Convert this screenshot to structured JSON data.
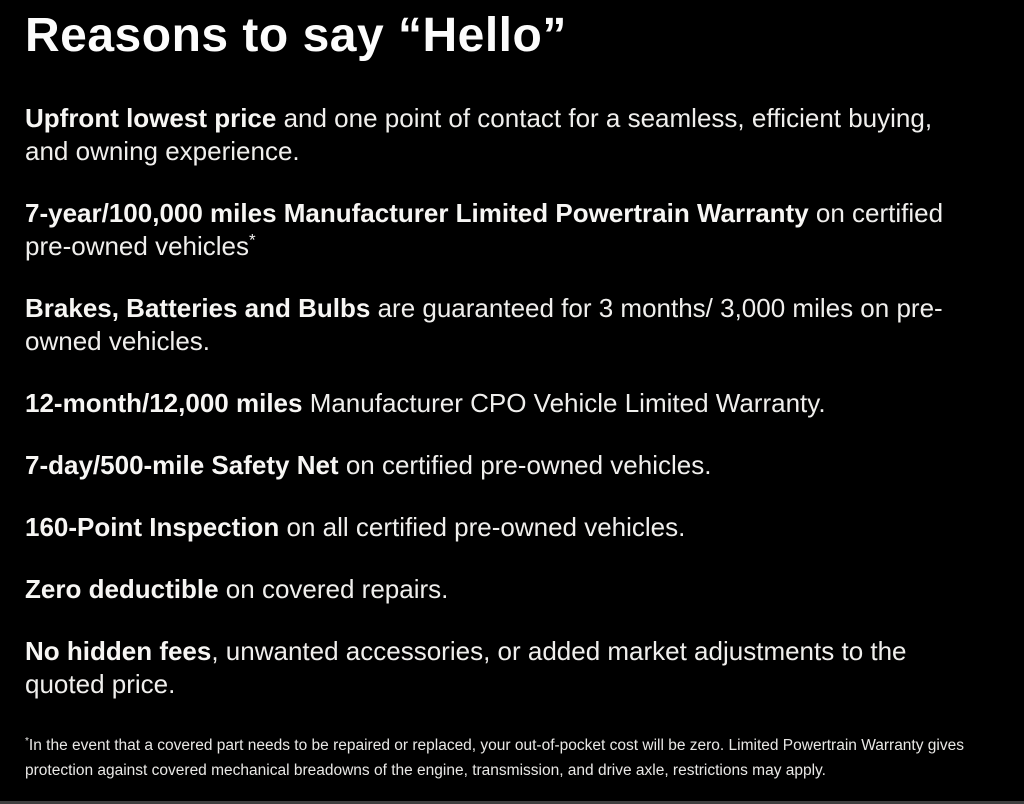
{
  "page": {
    "background": "#000000",
    "text_color": "#f0efed",
    "title": "Reasons to say “Hello”"
  },
  "items": [
    {
      "bold": "Upfront lowest price",
      "rest": " and one point of contact for a seamless, efficient buying, and owning experience.",
      "sup": ""
    },
    {
      "bold": "7-year/100,000 miles Manufacturer Limited Powertrain Warranty",
      "rest": " on certified pre-owned vehicles",
      "sup": "*"
    },
    {
      "bold": "Brakes, Batteries and Bulbs",
      "rest": " are guaranteed for 3 months/ 3,000 miles on pre-owned vehicles.",
      "sup": ""
    },
    {
      "bold": "12-month/12,000 miles",
      "rest": " Manufacturer CPO Vehicle Limited Warranty.",
      "sup": ""
    },
    {
      "bold": "7-day/500-mile Safety Net",
      "rest": " on certified pre-owned vehicles.",
      "sup": ""
    },
    {
      "bold": "160-Point Inspection",
      "rest": " on all certified pre-owned vehicles.",
      "sup": ""
    },
    {
      "bold": "Zero deductible",
      "rest": " on covered repairs.",
      "sup": ""
    },
    {
      "bold": "No hidden fees",
      "rest": ", unwanted accessories, or added market adjustments to the quoted price.",
      "sup": ""
    }
  ],
  "footnote": {
    "sup": "*",
    "text": "In the event that a covered part needs to be repaired or replaced, your out-of-pocket cost will be zero. Limited Powertrain Warranty gives protection against covered mechanical breadowns of the engine, transmission, and drive axle, restrictions may apply."
  }
}
